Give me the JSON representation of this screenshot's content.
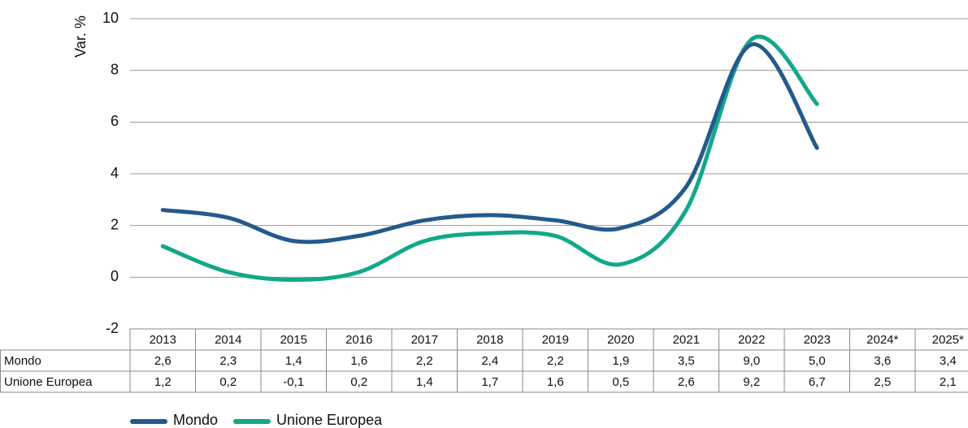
{
  "chart_data": {
    "type": "line",
    "y_label": "Var. %",
    "categories": [
      "2013",
      "2014",
      "2015",
      "2016",
      "2017",
      "2018",
      "2019",
      "2020",
      "2021",
      "2022",
      "2023",
      "2024*",
      "2025*"
    ],
    "series": [
      {
        "name": "Mondo",
        "color": "#245a8c",
        "values": [
          2.6,
          2.3,
          1.4,
          1.6,
          2.2,
          2.4,
          2.2,
          1.9,
          3.5,
          9.0,
          5.0,
          null,
          null
        ]
      },
      {
        "name": "Unione Europea",
        "color": "#12a889",
        "values": [
          1.2,
          0.2,
          -0.1,
          0.2,
          1.4,
          1.7,
          1.6,
          0.5,
          2.6,
          9.2,
          6.7,
          null,
          null
        ]
      }
    ],
    "table": {
      "rows": [
        {
          "label": "Mondo",
          "cells": [
            "2,6",
            "2,3",
            "1,4",
            "1,6",
            "2,2",
            "2,4",
            "2,2",
            "1,9",
            "3,5",
            "9,0",
            "5,0",
            "3,6",
            "3,4"
          ]
        },
        {
          "label": "Unione Europea",
          "cells": [
            "1,2",
            "0,2",
            "-0,1",
            "0,2",
            "1,4",
            "1,7",
            "1,6",
            "0,5",
            "2,6",
            "9,2",
            "6,7",
            "2,5",
            "2,1"
          ]
        }
      ]
    },
    "ylim": [
      -2,
      10
    ],
    "yticks": [
      -2,
      0,
      2,
      4,
      6,
      8,
      10
    ],
    "grid": true
  }
}
